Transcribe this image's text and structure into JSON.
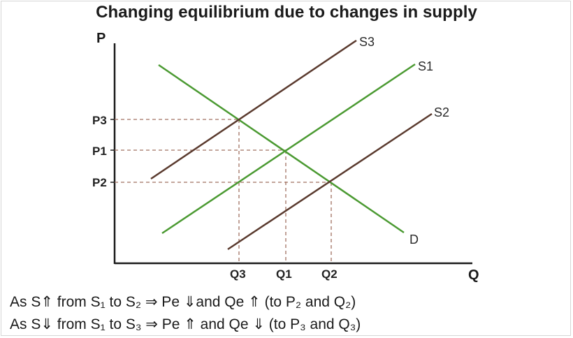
{
  "title": "Changing equilibrium due to changes in supply",
  "axes": {
    "y_label": "P",
    "x_label": "Q"
  },
  "price_ticks": [
    "P3",
    "P1",
    "P2"
  ],
  "quantity_ticks": [
    "Q3",
    "Q1",
    "Q2"
  ],
  "curves": {
    "S3": {
      "label": "S3",
      "color": "#5a3a2e"
    },
    "S1": {
      "label": "S1",
      "color": "#4b9a32"
    },
    "S2": {
      "label": "S2",
      "color": "#5a3a2e"
    },
    "D": {
      "label": "D",
      "color": "#4b9a32"
    }
  },
  "notes": [
    "As S⇑ from S₁ to S₂ ⇒ Pe ⇓and Qe ⇑ (to P₂ and Q₂)",
    "As S⇓ from S₁ to S₃ ⇒ Pe ⇑ and Qe ⇓ (to P₃ and Q₃)"
  ],
  "colors": {
    "guide": "#a07060",
    "axis": "#1a1a1a"
  }
}
